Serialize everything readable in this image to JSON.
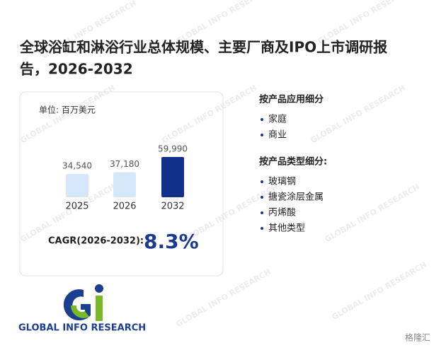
{
  "title_lines": [
    "全球浴缸和淋浴行业总体规模、主要厂商及IPO上市调研报",
    "告，2026-2032"
  ],
  "chart_data": {
    "type": "bar",
    "subtitle": "单位: 百万美元",
    "categories": [
      "2025",
      "2026",
      "2032"
    ],
    "values": [
      34540,
      37180,
      59990
    ],
    "value_labels": [
      "34,540",
      "37,180",
      "59,990"
    ],
    "colors": [
      "#d5e7f8",
      "#d5e7f8",
      "#12308a"
    ]
  },
  "cagr": {
    "label": "CAGR(2026-2032):",
    "value": "8.3%"
  },
  "segments": [
    {
      "title": "按产品应用细分",
      "items": [
        "家庭",
        "商业"
      ]
    },
    {
      "title": "按产品类型细分:",
      "items": [
        "玻璃钢",
        "搪瓷涂层金属",
        "丙烯酸",
        "其他类型"
      ]
    }
  ],
  "logo_text": "GLOBAL INFO RESEARCH",
  "watermark": "GLOBAL INFO RESEARCH",
  "corner_mark": "格隆汇"
}
